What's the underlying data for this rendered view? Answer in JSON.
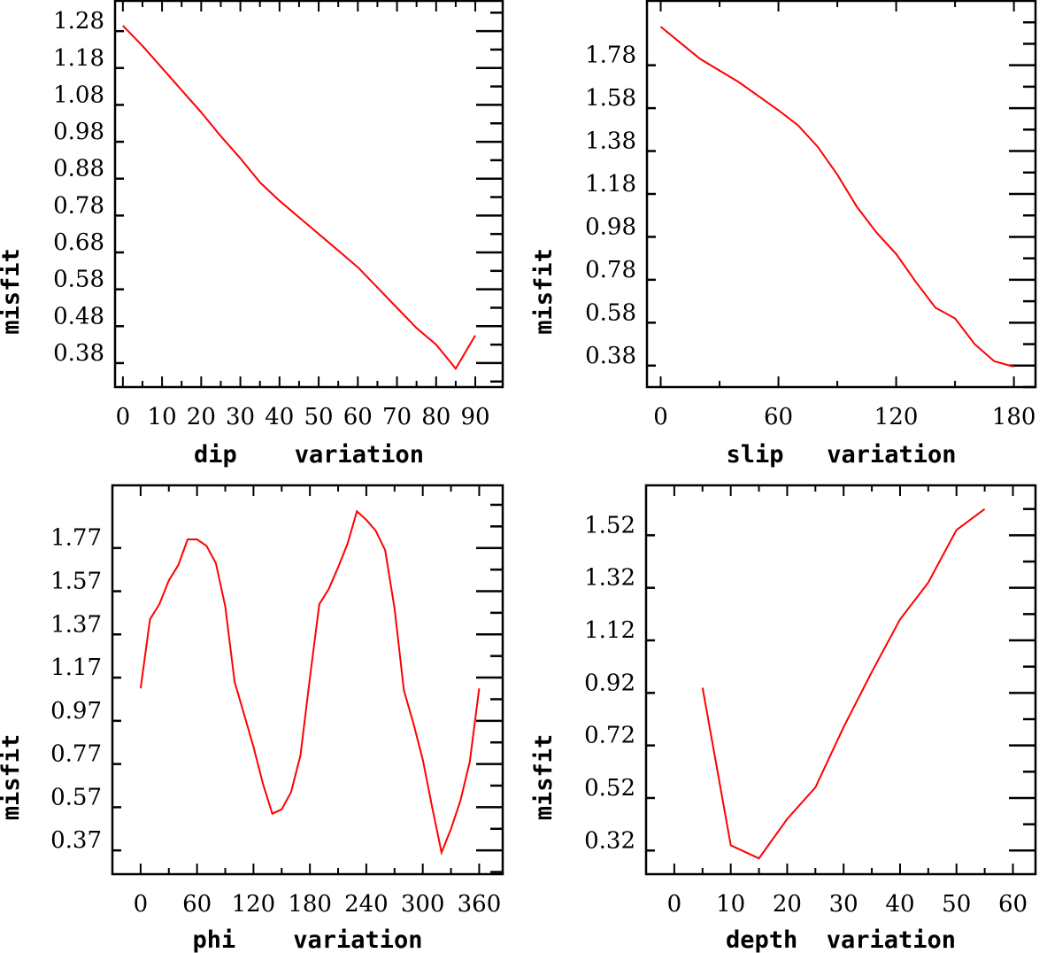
{
  "colors": {
    "line": "#ff0000",
    "axes": "#000000"
  },
  "chart_data": [
    {
      "type": "line",
      "xlabel": "dip    variation",
      "ylabel": "misfit",
      "xlim": [
        -2,
        97
      ],
      "ylim": [
        0.315,
        1.362
      ],
      "xticks": [
        0,
        10,
        20,
        30,
        40,
        50,
        60,
        70,
        80,
        90
      ],
      "xtick_labels": [
        "0",
        "10",
        "20",
        "30",
        "40",
        "50",
        "60",
        "70",
        "80",
        "90"
      ],
      "yticks": [
        0.38,
        0.48,
        0.58,
        0.68,
        0.78,
        0.88,
        0.98,
        1.08,
        1.18,
        1.28
      ],
      "ytick_labels": [
        "0.38",
        "0.48",
        "0.58",
        "0.68",
        "0.78",
        "0.88",
        "0.98",
        "1.08",
        "1.18",
        "1.28"
      ],
      "x": [
        0,
        5,
        10,
        15,
        20,
        25,
        30,
        35,
        40,
        45,
        50,
        55,
        60,
        65,
        70,
        75,
        80,
        85,
        90
      ],
      "y": [
        1.295,
        1.24,
        1.18,
        1.12,
        1.06,
        0.995,
        0.935,
        0.87,
        0.82,
        0.775,
        0.73,
        0.685,
        0.64,
        0.585,
        0.53,
        0.475,
        0.43,
        0.365,
        0.455
      ],
      "grid": false
    },
    {
      "type": "line",
      "xlabel": "slip   variation",
      "ylabel": "misfit",
      "xlim": [
        -7,
        191
      ],
      "ylim": [
        0.28,
        2.08
      ],
      "xticks": [
        0,
        60,
        120,
        180
      ],
      "xtick_labels": [
        "0",
        "60",
        "120",
        "180"
      ],
      "yticks": [
        0.38,
        0.58,
        0.78,
        0.98,
        1.18,
        1.38,
        1.58,
        1.78
      ],
      "ytick_labels": [
        "0.38",
        "0.58",
        "0.78",
        "0.98",
        "1.18",
        "1.38",
        "1.58",
        "1.78"
      ],
      "x": [
        0,
        20,
        40,
        60,
        70,
        80,
        90,
        100,
        110,
        120,
        130,
        140,
        150,
        160,
        170,
        180
      ],
      "y": [
        1.96,
        1.81,
        1.7,
        1.57,
        1.5,
        1.4,
        1.27,
        1.12,
        1.0,
        0.9,
        0.77,
        0.65,
        0.6,
        0.48,
        0.4,
        0.375
      ],
      "grid": false
    },
    {
      "type": "line",
      "xlabel": "phi    variation",
      "ylabel": "misfit",
      "xlim": [
        -30,
        385
      ],
      "ylim": [
        0.26,
        2.06
      ],
      "xticks": [
        0,
        60,
        120,
        180,
        240,
        300,
        360
      ],
      "xtick_labels": [
        "0",
        "60",
        "120",
        "180",
        "240",
        "300",
        "360"
      ],
      "yticks": [
        0.37,
        0.57,
        0.77,
        0.97,
        1.17,
        1.37,
        1.57,
        1.77
      ],
      "ytick_labels": [
        "0.37",
        "0.57",
        "0.77",
        "0.97",
        "1.17",
        "1.37",
        "1.57",
        "1.77"
      ],
      "x": [
        0,
        10,
        20,
        30,
        40,
        50,
        60,
        70,
        80,
        90,
        100,
        110,
        120,
        130,
        140,
        150,
        160,
        170,
        180,
        190,
        200,
        210,
        220,
        230,
        240,
        250,
        260,
        270,
        280,
        290,
        300,
        310,
        320,
        330,
        340,
        350,
        360
      ],
      "y": [
        1.12,
        1.44,
        1.51,
        1.62,
        1.69,
        1.81,
        1.81,
        1.78,
        1.7,
        1.5,
        1.15,
        1.0,
        0.85,
        0.68,
        0.54,
        0.56,
        0.64,
        0.81,
        1.17,
        1.51,
        1.58,
        1.68,
        1.79,
        1.94,
        1.9,
        1.85,
        1.76,
        1.49,
        1.11,
        0.96,
        0.79,
        0.57,
        0.36,
        0.47,
        0.6,
        0.78,
        1.12
      ],
      "grid": false
    },
    {
      "type": "line",
      "xlabel": "depth  variation",
      "ylabel": "misfit",
      "xlim": [
        -5,
        64
      ],
      "ylim": [
        0.23,
        1.71
      ],
      "xticks": [
        0,
        10,
        20,
        30,
        40,
        50,
        60
      ],
      "xtick_labels": [
        "0",
        "10",
        "20",
        "30",
        "40",
        "50",
        "60"
      ],
      "yticks": [
        0.32,
        0.52,
        0.72,
        0.92,
        1.12,
        1.32,
        1.52
      ],
      "ytick_labels": [
        "0.32",
        "0.52",
        "0.72",
        "0.92",
        "1.12",
        "1.32",
        "1.52"
      ],
      "x": [
        5,
        10,
        15,
        20,
        25,
        30,
        35,
        40,
        45,
        50,
        55
      ],
      "y": [
        0.94,
        0.34,
        0.29,
        0.44,
        0.56,
        0.79,
        1.0,
        1.2,
        1.34,
        1.54,
        1.62
      ],
      "grid": false
    }
  ]
}
